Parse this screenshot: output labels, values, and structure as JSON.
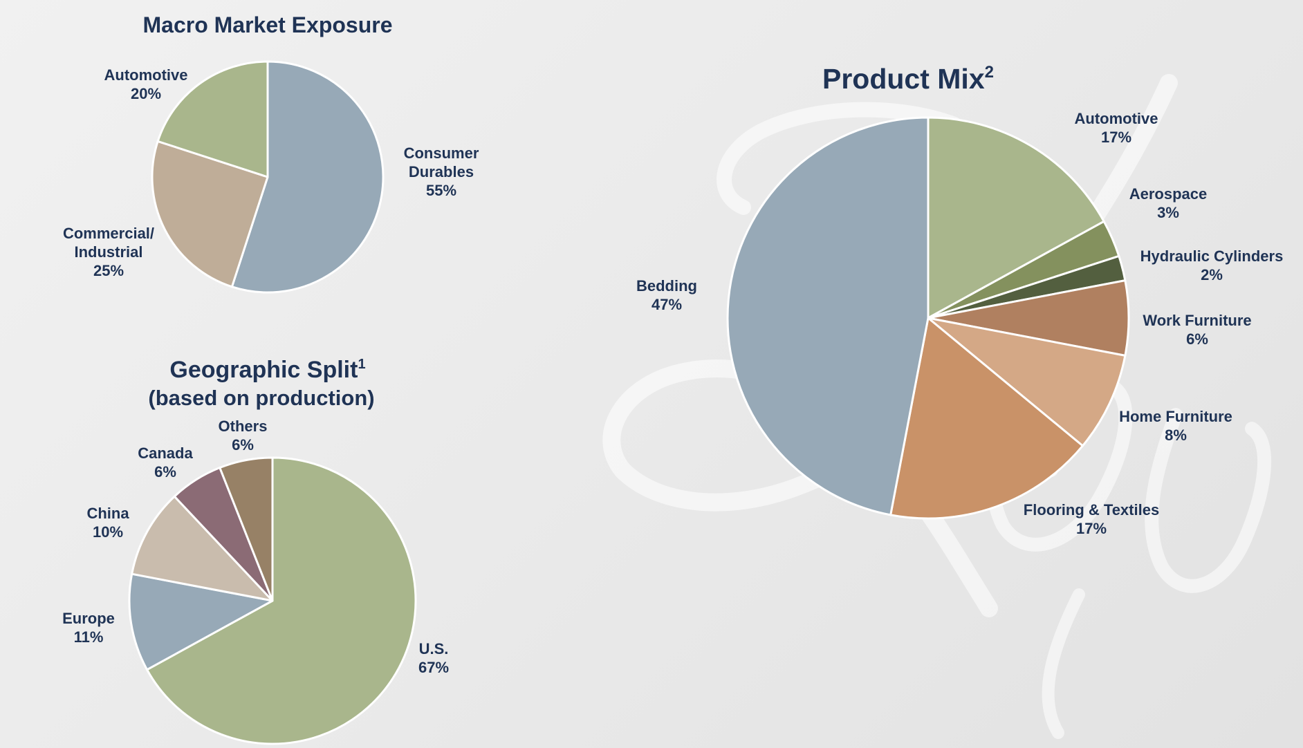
{
  "colors": {
    "title": "#1f3355",
    "label": "#1f3355",
    "slice_border": "#ffffff",
    "sage": "#a9b68c",
    "slate_blue": "#97a9b7",
    "taupe": "#bfad98",
    "light_taupe": "#c9bcad",
    "mauve": "#8b6b75",
    "brown": "#978166",
    "olive": "#84915e",
    "dark_olive": "#535f3f",
    "terracotta": "#b08060",
    "peach": "#d4a886",
    "clay": "#c99268"
  },
  "chart_data": [
    {
      "id": "macro",
      "type": "pie",
      "title": "Macro Market Exposure",
      "slices": [
        {
          "key": "consumer",
          "label": [
            "Consumer",
            "Durables"
          ],
          "pct_label": "55%",
          "value": 55,
          "color": "#97a9b7"
        },
        {
          "key": "commercial",
          "label": [
            "Commercial/",
            "Industrial"
          ],
          "pct_label": "25%",
          "value": 25,
          "color": "#bfad98"
        },
        {
          "key": "automotive",
          "label": [
            "Automotive"
          ],
          "pct_label": "20%",
          "value": 20,
          "color": "#a9b68c"
        }
      ]
    },
    {
      "id": "geo",
      "type": "pie",
      "title": "Geographic Split",
      "title_sup": "1",
      "subtitle": "(based on production)",
      "slices": [
        {
          "key": "us",
          "label": [
            "U.S."
          ],
          "pct_label": "67%",
          "value": 67,
          "color": "#a9b68c"
        },
        {
          "key": "europe",
          "label": [
            "Europe"
          ],
          "pct_label": "11%",
          "value": 11,
          "color": "#97a9b7"
        },
        {
          "key": "china",
          "label": [
            "China"
          ],
          "pct_label": "10%",
          "value": 10,
          "color": "#c9bcad"
        },
        {
          "key": "canada",
          "label": [
            "Canada"
          ],
          "pct_label": "6%",
          "value": 6,
          "color": "#8b6b75"
        },
        {
          "key": "others",
          "label": [
            "Others"
          ],
          "pct_label": "6%",
          "value": 6,
          "color": "#978166"
        }
      ]
    },
    {
      "id": "product",
      "type": "pie",
      "title": "Product Mix",
      "title_sup": "2",
      "slices": [
        {
          "key": "automotive",
          "label": [
            "Automotive"
          ],
          "pct_label": "17%",
          "value": 17,
          "color": "#a9b68c"
        },
        {
          "key": "aerospace",
          "label": [
            "Aerospace"
          ],
          "pct_label": "3%",
          "value": 3,
          "color": "#84915e"
        },
        {
          "key": "hydraulic",
          "label": [
            "Hydraulic Cylinders"
          ],
          "pct_label": "2%",
          "value": 2,
          "color": "#535f3f"
        },
        {
          "key": "work",
          "label": [
            "Work Furniture"
          ],
          "pct_label": "6%",
          "value": 6,
          "color": "#b08060"
        },
        {
          "key": "home",
          "label": [
            "Home Furniture"
          ],
          "pct_label": "8%",
          "value": 8,
          "color": "#d4a886"
        },
        {
          "key": "flooring",
          "label": [
            "Flooring & Textiles"
          ],
          "pct_label": "17%",
          "value": 17,
          "color": "#c99268"
        },
        {
          "key": "bedding",
          "label": [
            "Bedding"
          ],
          "pct_label": "47%",
          "value": 47,
          "color": "#97a9b7"
        }
      ]
    }
  ]
}
